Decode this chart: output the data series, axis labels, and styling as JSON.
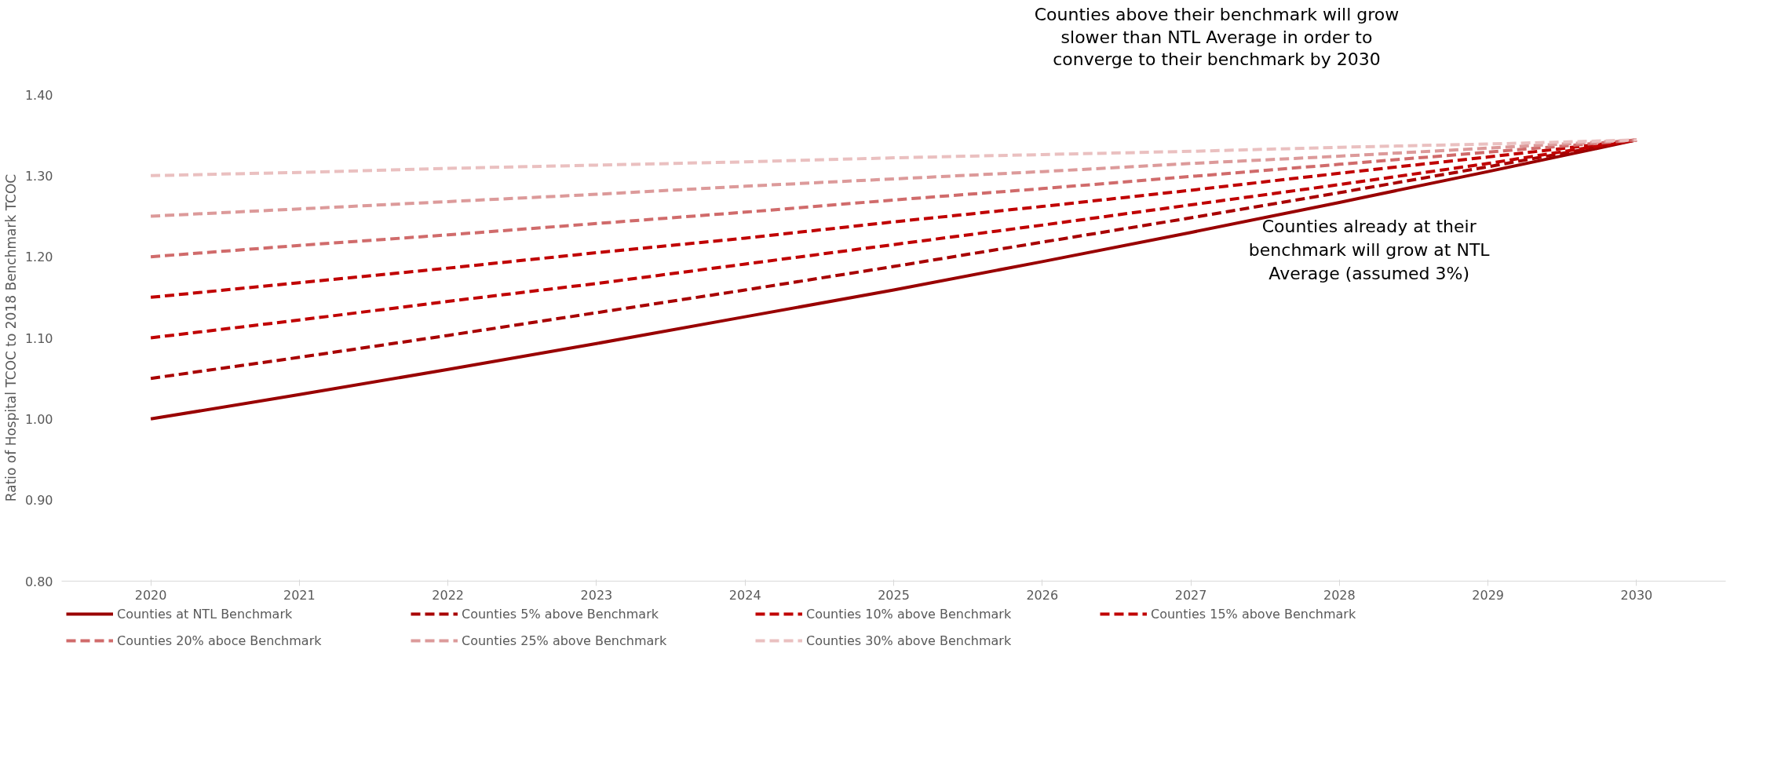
{
  "chart_data": {
    "type": "line",
    "ylabel": "Ratio of Hospital TCOC to 2018 Benchmark TCOC",
    "categories": [
      "2020",
      "2021",
      "2022",
      "2023",
      "2024",
      "2025",
      "2026",
      "2027",
      "2028",
      "2029",
      "2030"
    ],
    "ylim": [
      0.8,
      1.4
    ],
    "yticks": [
      {
        "value": 0.8,
        "label": "0.80"
      },
      {
        "value": 0.9,
        "label": "0.90"
      },
      {
        "value": 1.0,
        "label": "1.00"
      },
      {
        "value": 1.1,
        "label": "1.10"
      },
      {
        "value": 1.2,
        "label": "1.20"
      },
      {
        "value": 1.3,
        "label": "1.30"
      },
      {
        "value": 1.4,
        "label": "1.40"
      }
    ],
    "grid": false,
    "legend": "bottom",
    "marker": "none",
    "series": [
      {
        "name": "Counties at NTL Benchmark",
        "color": "#990000",
        "line_style": "solid",
        "values": [
          1.0,
          1.03,
          1.061,
          1.093,
          1.126,
          1.159,
          1.194,
          1.23,
          1.267,
          1.305,
          1.344
        ]
      },
      {
        "name": "Counties 5% above Benchmark",
        "color": "#a80000",
        "line_style": "dashed",
        "values": [
          1.05,
          1.076,
          1.103,
          1.131,
          1.159,
          1.188,
          1.218,
          1.248,
          1.279,
          1.311,
          1.344
        ]
      },
      {
        "name": "Counties 10% above Benchmark",
        "color": "#c00000",
        "line_style": "dashed",
        "values": [
          1.1,
          1.122,
          1.145,
          1.167,
          1.191,
          1.215,
          1.239,
          1.264,
          1.289,
          1.315,
          1.344
        ]
      },
      {
        "name": "Counties 15% above Benchmark",
        "color": "#c00000",
        "line_style": "dashed",
        "values": [
          1.15,
          1.168,
          1.186,
          1.205,
          1.223,
          1.243,
          1.262,
          1.282,
          1.303,
          1.323,
          1.344
        ]
      },
      {
        "name": "Counties 20% aboce Benchmark",
        "color": "#d06b6b",
        "line_style": "dashed",
        "values": [
          1.2,
          1.214,
          1.227,
          1.241,
          1.255,
          1.27,
          1.284,
          1.299,
          1.314,
          1.329,
          1.344
        ]
      },
      {
        "name": "Counties 25% above Benchmark",
        "color": "#dc9a9a",
        "line_style": "dashed",
        "values": [
          1.25,
          1.259,
          1.268,
          1.277,
          1.287,
          1.296,
          1.305,
          1.315,
          1.324,
          1.334,
          1.344
        ]
      },
      {
        "name": "Counties 30% above Benchmark",
        "color": "#eac0c0",
        "line_style": "dashed",
        "values": [
          1.3,
          1.304,
          1.309,
          1.313,
          1.317,
          1.322,
          1.326,
          1.33,
          1.335,
          1.339,
          1.344
        ]
      }
    ],
    "annotations": [
      "Counties above their benchmark will grow slower than NTL Average in order to converge to their benchmark by 2030",
      "Counties already at their benchmark will grow at NTL Average (assumed 3%)"
    ]
  }
}
